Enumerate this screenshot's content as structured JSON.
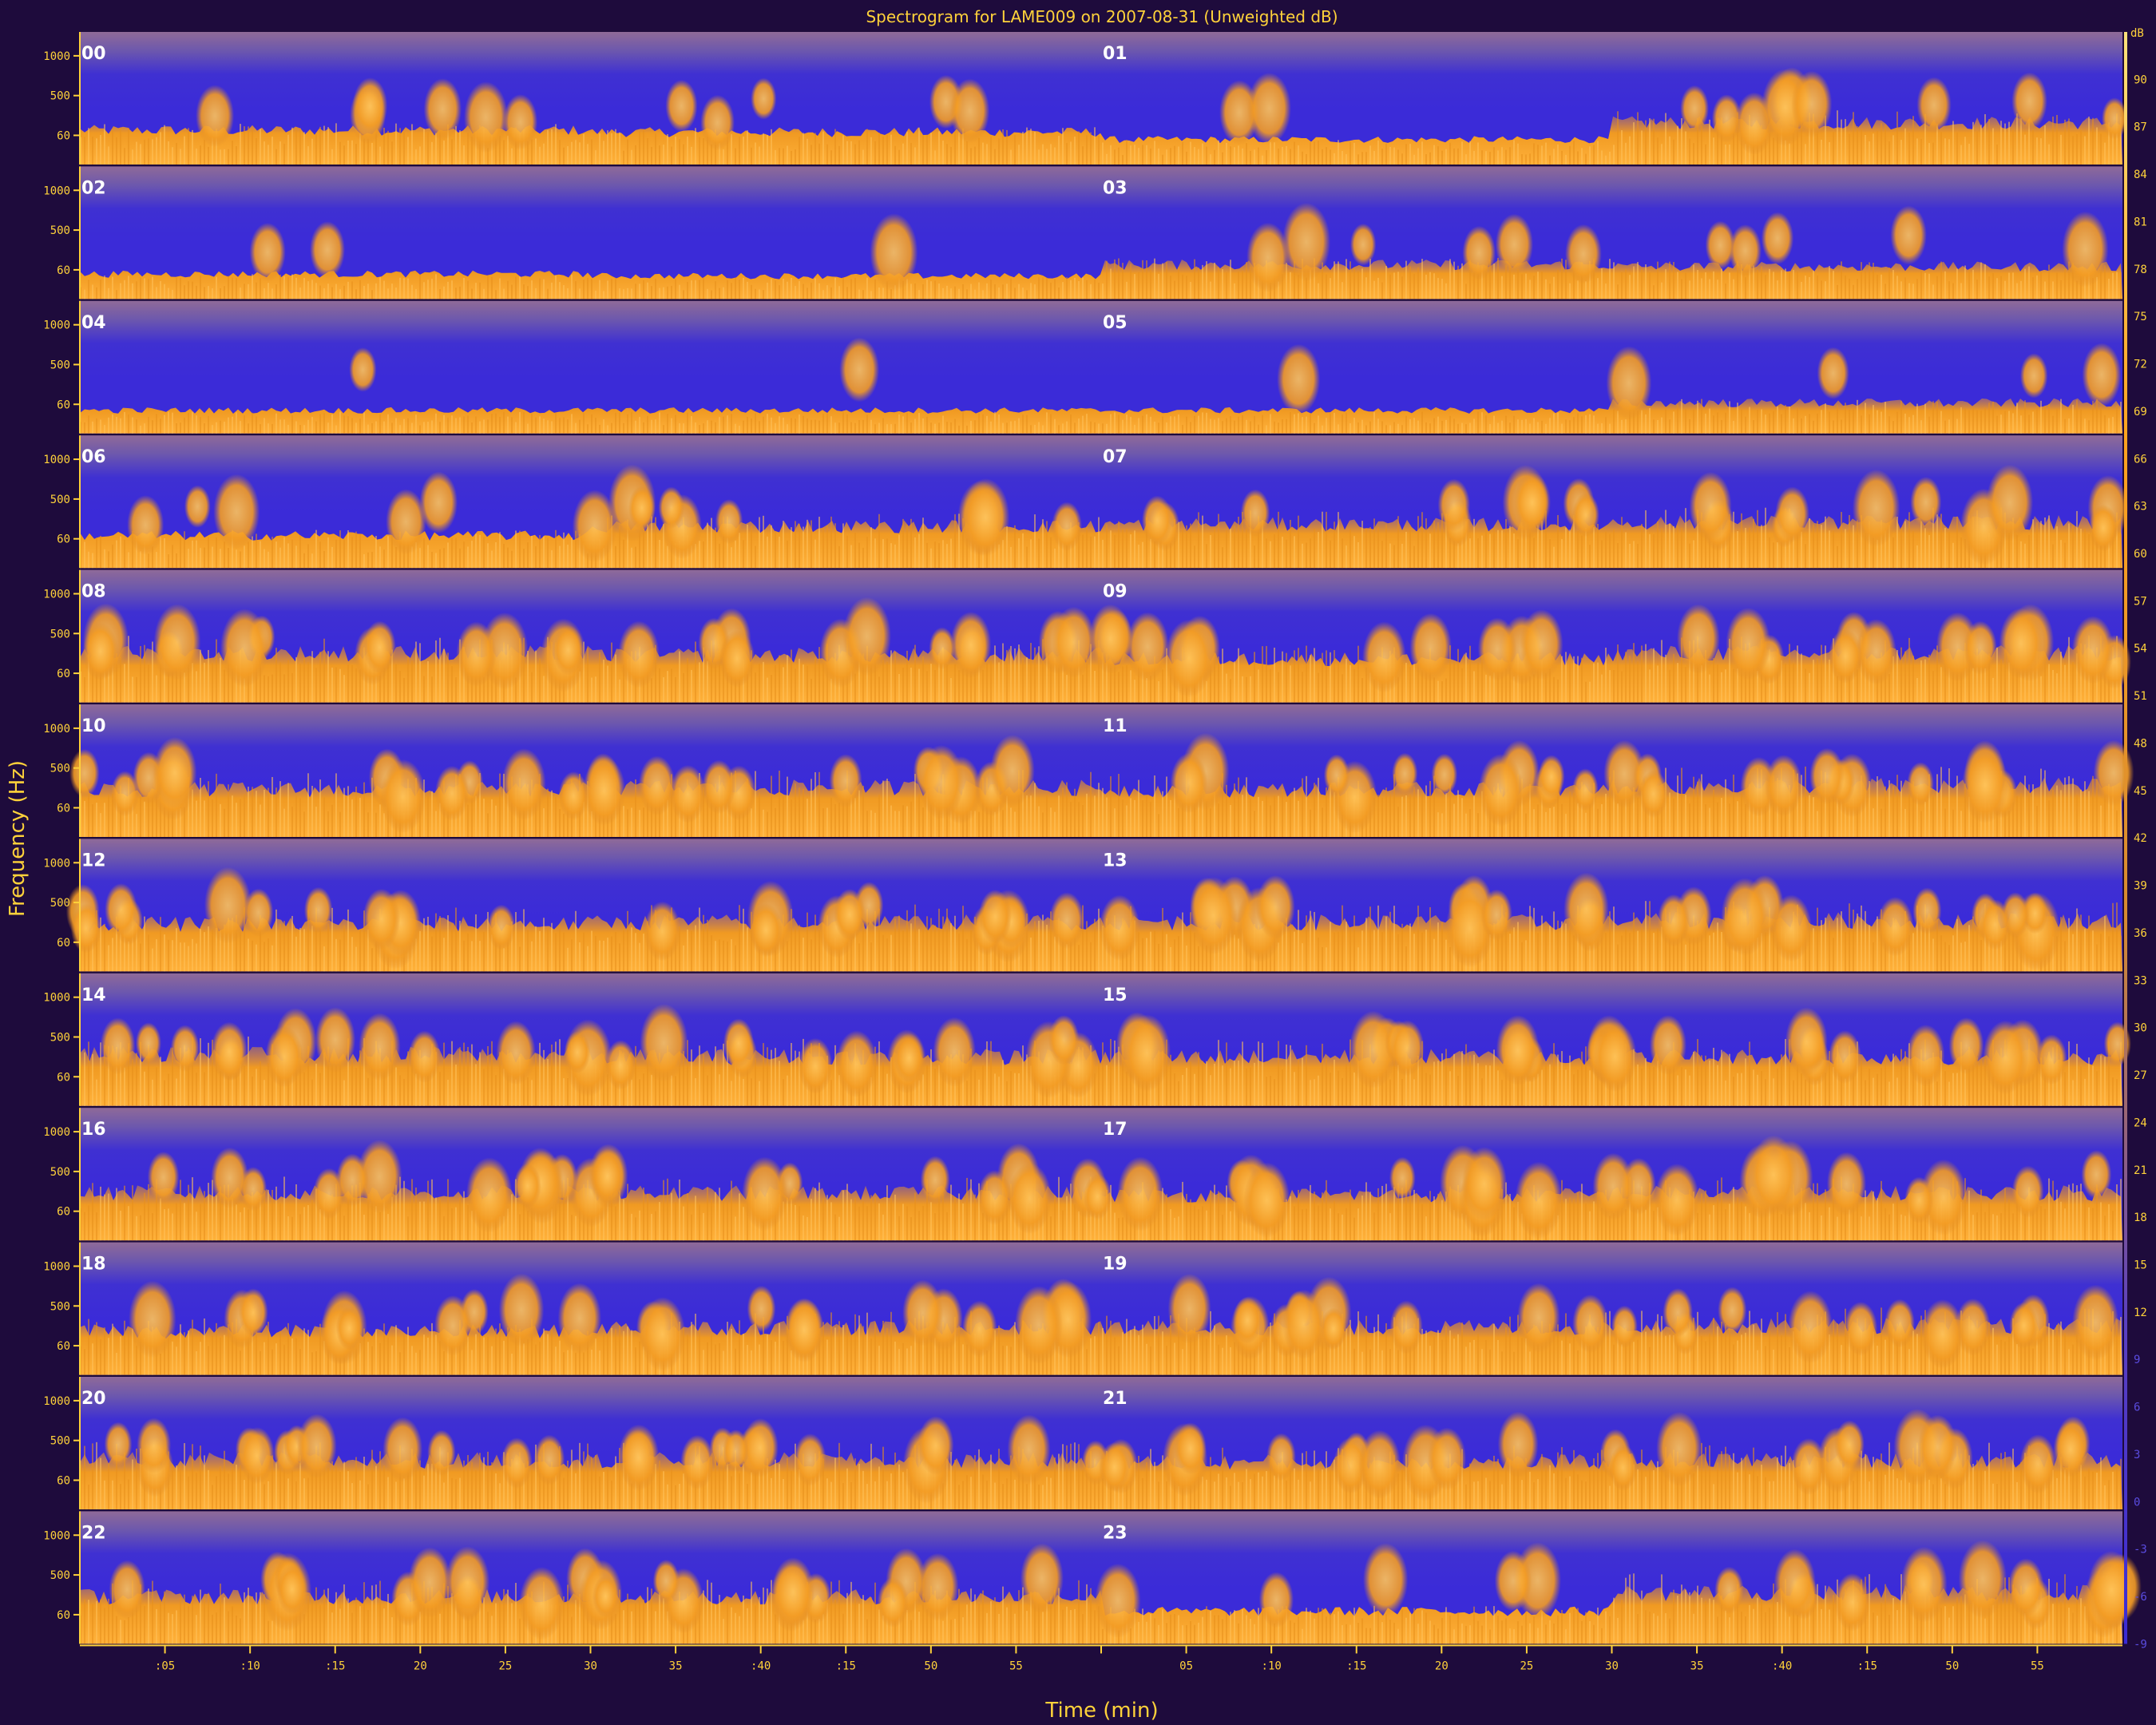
{
  "chart_data": {
    "type": "heatmap",
    "title": "Spectrogram for LAME009 on 2007-08-31 (Unweighted dB)",
    "xlabel": "Time (min)",
    "ylabel": "Frequency (Hz)",
    "hour_labels": [
      "00",
      "01",
      "02",
      "03",
      "04",
      "05",
      "06",
      "07",
      "08",
      "09",
      "10",
      "11",
      "12",
      "13",
      "14",
      "15",
      "16",
      "17",
      "18",
      "19",
      "20",
      "21",
      "22",
      "23"
    ],
    "hours_per_row": 2,
    "row_count": 12,
    "x_tick_labels": [
      ":05",
      ":10",
      ":15",
      "20",
      "25",
      "30",
      "35",
      ":40",
      ":15",
      "50",
      "55",
      "",
      "05",
      ":10",
      ":15",
      "20",
      "25",
      "30",
      "35",
      ":40",
      ":15",
      "50",
      "55"
    ],
    "y_tick_labels": [
      "1000",
      "500",
      "60"
    ],
    "colorbar": {
      "unit": "dB",
      "ticks": [
        "90",
        "87",
        "84",
        "81",
        "78",
        "75",
        "72",
        "69",
        "66",
        "63",
        "60",
        "57",
        "54",
        "51",
        "48",
        "45",
        "42",
        "39",
        "36",
        "33",
        "30",
        "27",
        "24",
        "21",
        "18",
        "15",
        "12",
        "9",
        "6",
        "3",
        "0",
        "-3",
        "-6",
        "-9"
      ],
      "range": [
        -9,
        93
      ],
      "colors": {
        "high": "#ffe27a",
        "upper": "#ffa31f",
        "mid": "#ef9420",
        "low": "#3a2bd6",
        "floor": "#1e0b3c"
      }
    },
    "activity": [
      [
        0.35,
        0.3,
        0.1,
        0.55
      ],
      [
        0.1,
        0.05,
        0.35,
        0.3
      ],
      [
        0.05,
        0.05,
        0.05,
        0.25
      ],
      [
        0.3,
        0.55,
        0.6,
        0.65
      ],
      [
        0.75,
        0.7,
        0.6,
        0.75
      ],
      [
        0.7,
        0.75,
        0.7,
        0.8
      ],
      [
        0.7,
        0.75,
        0.75,
        0.8
      ],
      [
        0.8,
        0.75,
        0.75,
        0.75
      ],
      [
        0.7,
        0.7,
        0.65,
        0.7
      ],
      [
        0.6,
        0.7,
        0.7,
        0.75
      ],
      [
        0.75,
        0.75,
        0.7,
        0.75
      ],
      [
        0.7,
        0.7,
        0.3,
        0.8
      ]
    ],
    "grid": false
  }
}
